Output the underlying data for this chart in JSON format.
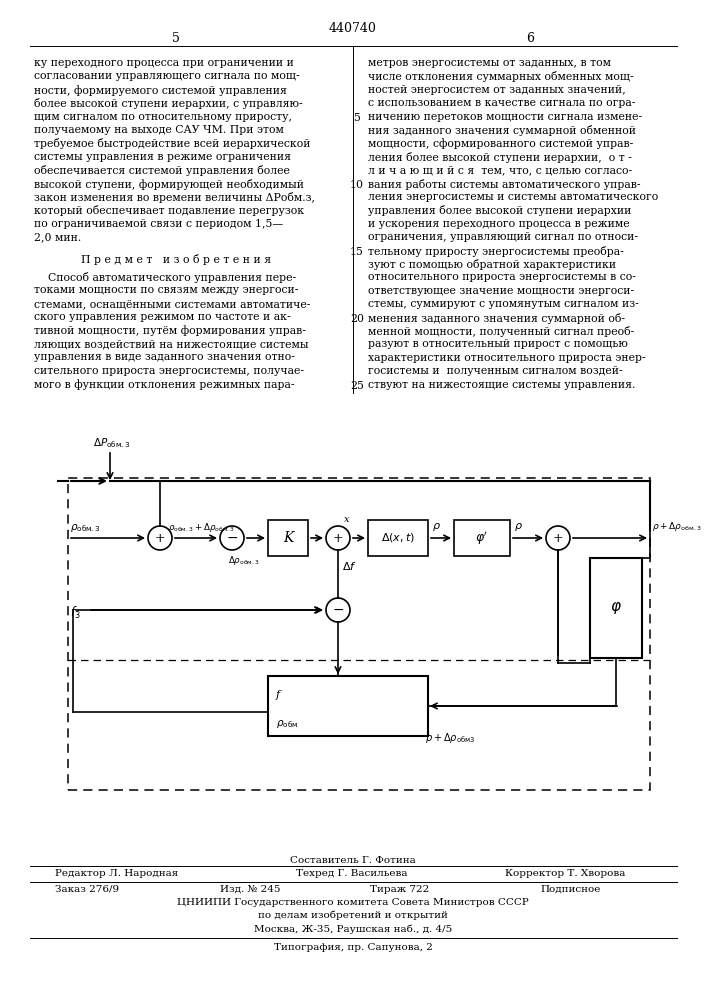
{
  "patent_number": "440740",
  "page_left": "5",
  "page_right": "6",
  "bg_color": "#ffffff",
  "text_color": "#000000",
  "left_col_lines": [
    "ку переходного процесса при ограничении и",
    "согласовании управляющего сигнала по мощ-",
    "ности, формируемого системой управления",
    "более высокой ступени иерархии, с управляю-",
    "щим сигналом по относительному приросту,",
    "получаемому на выходе САУ ЧМ. При этом",
    "требуемое быстродействие всей иерархической",
    "системы управления в режиме ограничения",
    "обеспечивается системой управления более",
    "высокой ступени, формирующей необходимый",
    "закон изменения во времени величины ΔPобм.з,",
    "который обеспечивает подавление перегрузок",
    "по ограничиваемой связи с периодом 1,5—",
    "2,0 мин."
  ],
  "predmet_title": "П р е д м е т   и з о б р е т е н и я",
  "predmet_lines": [
    "    Способ автоматического управления пере-",
    "токами мощности по связям между энергоси-",
    "стемами, оснащёнными системами автоматиче-",
    "ского управления режимом по частоте и ак-",
    "тивной мощности, путём формирования управ-",
    "ляющих воздействий на нижестоящие системы",
    "управления в виде заданного значения отно-",
    "сительного прироста энергосистемы, получае-",
    "мого в функции отклонения режимных пара-"
  ],
  "right_col_lines": [
    "метров энергосистемы от заданных, в том",
    "числе отклонения суммарных обменных мощ-",
    "ностей энергосистем от заданных значений,",
    "с использованием в качестве сигнала по огра-",
    "ничению перетоков мощности сигнала измене-",
    "ния заданного значения суммарной обменной",
    "мощности, сформированного системой управ-",
    "ления более высокой ступени иерархии,  о т -",
    "л и ч а ю щ и й с я  тем, что, с целью согласо-",
    "вания работы системы автоматического управ-",
    "ления энергосистемы и системы автоматического",
    "управления более высокой ступени иерархии",
    "и ускорения переходного процесса в режиме",
    "ограничения, управляющий сигнал по относи-",
    "тельному приросту энергосистемы преобра-",
    "зуют с помощью обратной характеристики",
    "относительного прироста энергосистемы в со-",
    "ответствующее значение мощности энергоси-",
    "стемы, суммируют с упомянутым сигналом из-",
    "менения заданного значения суммарной об-",
    "менной мощности, полученный сигнал преоб-",
    "разуют в относительный прирост с помощью",
    "характеристики относительного прироста энер-",
    "госистемы и  полученным сигналом воздей-",
    "ствуют на нижестоящие системы управления."
  ],
  "line_numbers": [
    5,
    10,
    15,
    20,
    25
  ],
  "footer_compiler": "Составитель Г. Фотина",
  "footer_editor": "Редактор Л. Народная",
  "footer_techred": "Техред Г. Васильева",
  "footer_corrector": "Корректор Т. Хворова",
  "footer_order": "Заказ 276/9",
  "footer_izd": "Изд. № 245",
  "footer_tirazh": "Тираж 722",
  "footer_podpisnoe": "Подписное",
  "footer_tsniipii": "ЦНИИПИ Государственного комитета Совета Министров СССР",
  "footer_po_delam": "по делам изобретений и открытий",
  "footer_address": "Москва, Ж-35, Раушская наб., д. 4/5",
  "footer_tipografia": "Типография, пр. Сапунова, 2"
}
